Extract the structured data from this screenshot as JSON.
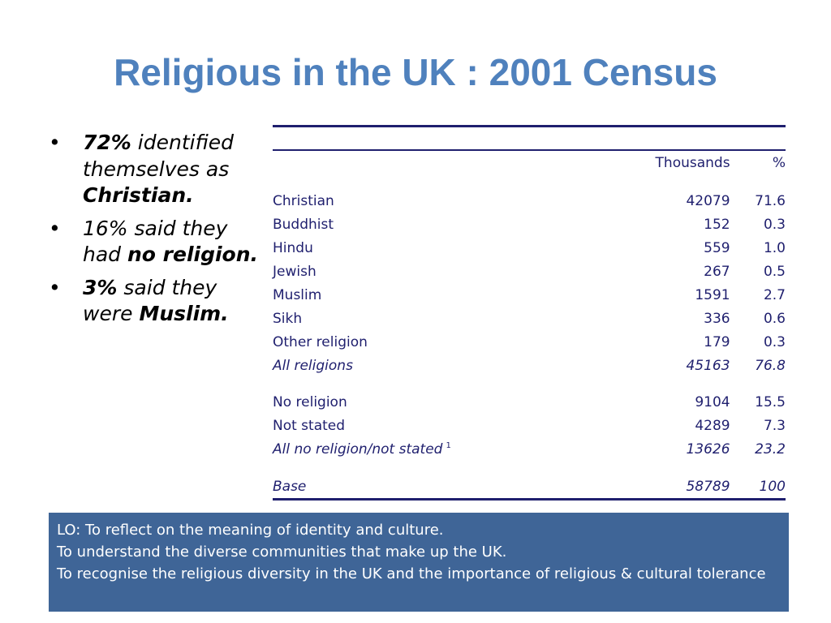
{
  "title": "Religious in the UK : 2001 Census",
  "bullets": [
    {
      "bold": "72%",
      "pre": "",
      "text": " identified themselves as ",
      "bold2": "Christian."
    },
    {
      "bold": "",
      "pre": "16% said they had ",
      "text": "",
      "bold2": "no religion."
    },
    {
      "bold": "3%",
      "pre": "",
      "text": " said they were ",
      "bold2": "Muslim."
    }
  ],
  "bullet_symbol": "•",
  "table": {
    "headers": [
      "",
      "Thousands",
      "%"
    ],
    "rows": [
      {
        "label": "Christian",
        "thousands": "42079",
        "pct": "71.6"
      },
      {
        "label": "Buddhist",
        "thousands": "152",
        "pct": "0.3"
      },
      {
        "label": "Hindu",
        "thousands": "559",
        "pct": "1.0"
      },
      {
        "label": "Jewish",
        "thousands": "267",
        "pct": "0.5"
      },
      {
        "label": "Muslim",
        "thousands": "1591",
        "pct": "2.7"
      },
      {
        "label": "Sikh",
        "thousands": "336",
        "pct": "0.6"
      },
      {
        "label": "Other religion",
        "thousands": "179",
        "pct": "0.3"
      },
      {
        "label": "All religions",
        "thousands": "45163",
        "pct": "76.8"
      },
      {
        "label": "No religion",
        "thousands": "9104",
        "pct": "15.5"
      },
      {
        "label": "Not stated",
        "thousands": "4289",
        "pct": "7.3"
      },
      {
        "label": "All no religion/not stated",
        "footnote": "1",
        "thousands": "13626",
        "pct": "23.2"
      },
      {
        "label": "Base",
        "thousands": "58789",
        "pct": "100"
      }
    ]
  },
  "lo_box": {
    "lines": [
      "LO: To reflect on the meaning of identity and culture.",
      "To understand the diverse communities that make up the UK.",
      "To recognise the religious diversity in the UK and the importance of religious  & cultural tolerance"
    ]
  },
  "colors": {
    "title": "#4f81bd",
    "table_text": "#1f1f6e",
    "box_bg": "#3f6597"
  }
}
